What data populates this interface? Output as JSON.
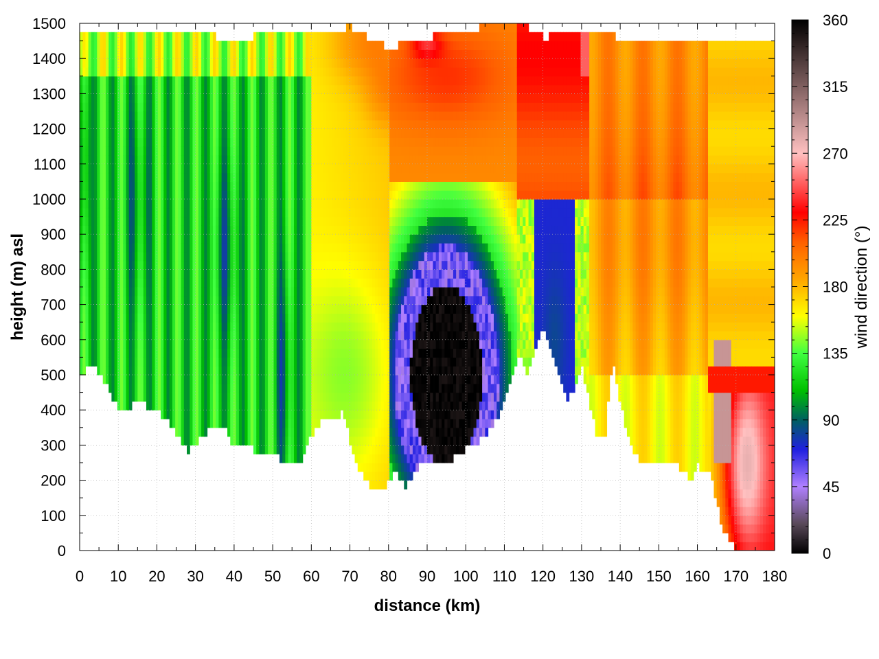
{
  "chart_data": {
    "type": "heatmap",
    "title": "",
    "xlabel": "distance (km)",
    "ylabel": "height (m) asl",
    "colorbar_label": "wind direction (°)",
    "xlim": [
      0,
      180
    ],
    "ylim": [
      0,
      1500
    ],
    "clim": [
      0,
      360
    ],
    "x_ticks": [
      0,
      10,
      20,
      30,
      40,
      50,
      60,
      70,
      80,
      90,
      100,
      110,
      120,
      130,
      140,
      150,
      160,
      170,
      180
    ],
    "y_ticks": [
      0,
      100,
      200,
      300,
      400,
      500,
      600,
      700,
      800,
      900,
      1000,
      1100,
      1200,
      1300,
      1400,
      1500
    ],
    "colorbar_ticks": [
      0,
      45,
      90,
      135,
      180,
      225,
      270,
      315,
      360
    ],
    "grid": true,
    "colormap": [
      {
        "v": 0,
        "color": "#000000"
      },
      {
        "v": 20,
        "color": "#5a4a5a"
      },
      {
        "v": 45,
        "color": "#b080ff"
      },
      {
        "v": 70,
        "color": "#2020e0"
      },
      {
        "v": 90,
        "color": "#006060"
      },
      {
        "v": 110,
        "color": "#00c000"
      },
      {
        "v": 135,
        "color": "#40ff40"
      },
      {
        "v": 160,
        "color": "#ffff00"
      },
      {
        "v": 185,
        "color": "#ffa500"
      },
      {
        "v": 210,
        "color": "#ff6000"
      },
      {
        "v": 230,
        "color": "#ff0000"
      },
      {
        "v": 270,
        "color": "#ffc0c0"
      },
      {
        "v": 315,
        "color": "#806060"
      },
      {
        "v": 360,
        "color": "#000000"
      }
    ],
    "terrain": {
      "x": [
        0,
        2,
        5,
        8,
        10,
        12,
        14,
        16,
        18,
        20,
        22,
        24,
        26,
        28,
        30,
        32,
        35,
        38,
        40,
        42,
        45,
        48,
        50,
        52,
        54,
        56,
        58,
        60,
        62,
        64,
        66,
        68,
        70,
        72,
        74,
        76,
        78,
        80,
        82,
        84,
        86,
        88,
        90,
        92,
        95,
        98,
        100,
        102,
        105,
        108,
        110,
        112,
        114,
        116,
        118,
        120,
        122,
        124,
        126,
        128,
        130,
        132,
        134,
        136,
        138,
        140,
        142,
        144,
        146,
        148,
        150,
        152,
        154,
        156,
        158,
        160,
        162,
        164,
        166,
        168,
        170,
        175,
        180
      ],
      "z": [
        480,
        530,
        510,
        450,
        410,
        400,
        420,
        420,
        410,
        400,
        380,
        350,
        320,
        280,
        300,
        330,
        360,
        340,
        300,
        310,
        290,
        270,
        270,
        260,
        240,
        240,
        260,
        330,
        360,
        380,
        370,
        400,
        310,
        240,
        200,
        180,
        170,
        190,
        230,
        180,
        210,
        240,
        250,
        250,
        250,
        270,
        290,
        300,
        330,
        370,
        420,
        500,
        550,
        510,
        560,
        640,
        580,
        500,
        430,
        450,
        530,
        430,
        330,
        310,
        550,
        420,
        330,
        270,
        250,
        260,
        250,
        260,
        250,
        230,
        200,
        240,
        230,
        200,
        80,
        30,
        0,
        0,
        0
      ]
    },
    "top_boundary": {
      "x": [
        0,
        20,
        40,
        60,
        70,
        80,
        90,
        100,
        110,
        115,
        120,
        130,
        140,
        150,
        160,
        165,
        168,
        180
      ],
      "z": [
        1480,
        1470,
        1460,
        1470,
        1490,
        1430,
        1460,
        1480,
        1500,
        1500,
        1460,
        1480,
        1460,
        1450,
        1450,
        1440,
        1440,
        1440
      ]
    }
  }
}
